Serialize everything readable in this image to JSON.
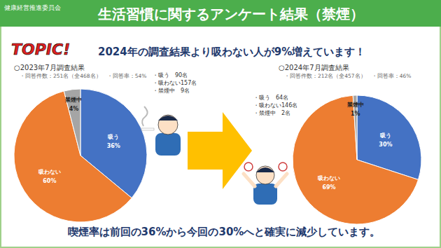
{
  "header": {
    "organization": "健康経営推進委員会",
    "title": "生活習慣に関するアンケート結果（禁煙）"
  },
  "topic": {
    "badge": "TOPIC!",
    "text": "2024年の調査結果より吸わない人が9%増えています！"
  },
  "chart_data": [
    {
      "type": "pie",
      "title": "○2023年7月調査結果",
      "subtitle": "・回答件数：251名（全468名）　・回答率：54%",
      "categories": [
        "吸う",
        "吸わない",
        "禁煙中"
      ],
      "values": [
        36,
        60,
        4
      ],
      "value_labels": [
        "36%",
        "60%",
        "4%"
      ],
      "colors": [
        "#4472c4",
        "#ed7d31",
        "#a5a5a5"
      ],
      "data_labels": true,
      "annotations": [
        "・吸う　90名",
        "・吸わない157名",
        "・禁煙中　9名"
      ]
    },
    {
      "type": "pie",
      "title": "○2024年7月調査結果",
      "subtitle": "・回答件数：212名（全457名）　・回答率：46%",
      "categories": [
        "吸う",
        "吸わない",
        "禁煙中"
      ],
      "values": [
        30,
        69,
        1
      ],
      "value_labels": [
        "30%",
        "69%",
        "1%"
      ],
      "colors": [
        "#4472c4",
        "#ed7d31",
        "#a5a5a5"
      ],
      "data_labels": true,
      "annotations": [
        "・吸う　64名",
        "・吸わない146名",
        "・禁煙中　2名"
      ]
    }
  ],
  "footer": "喫煙率は前回の36%から今回の30%へと確実に減少しています。"
}
